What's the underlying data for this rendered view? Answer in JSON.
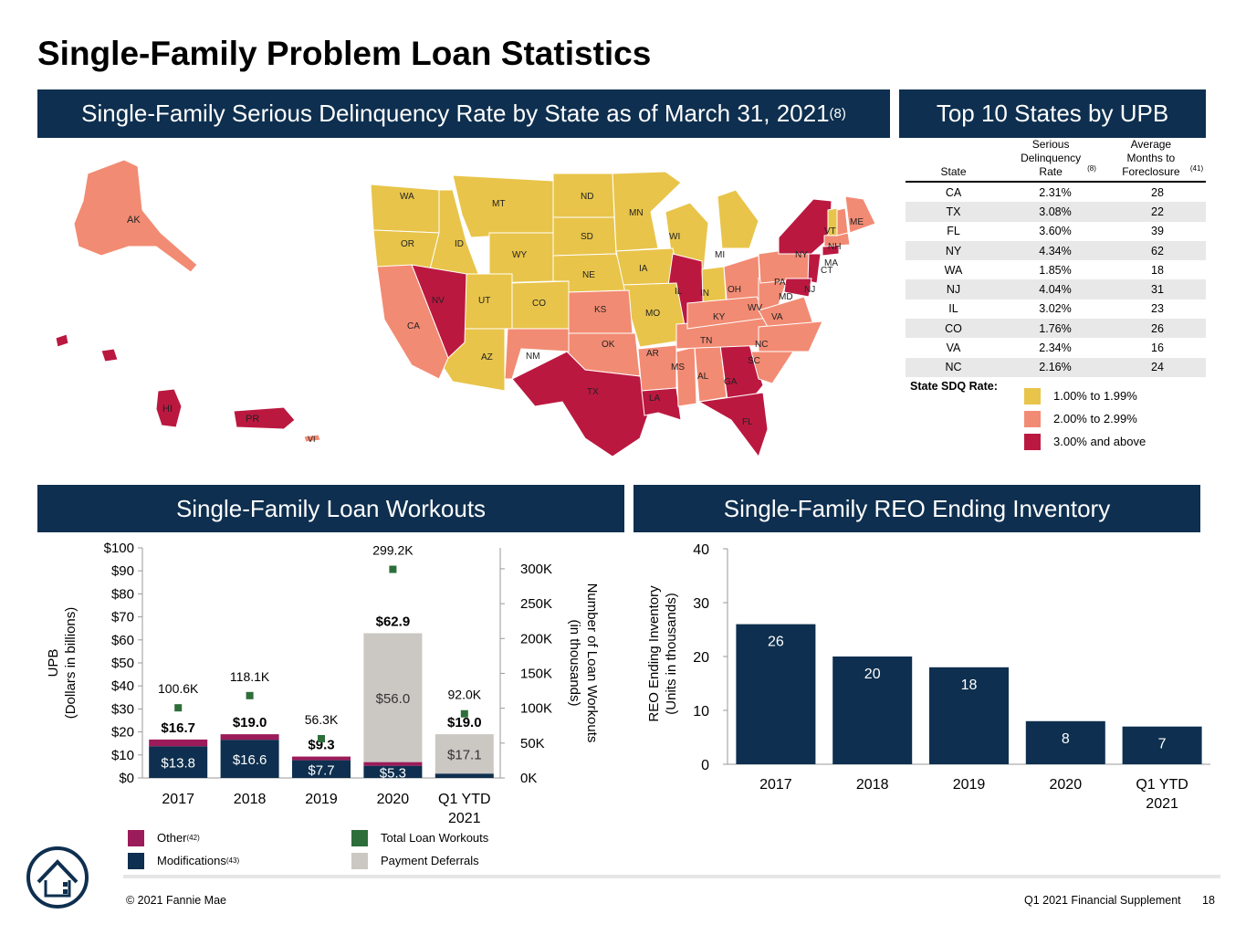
{
  "page": {
    "title": "Single-Family Problem Loan Statistics",
    "footer_left": "© 2021 Fannie Mae",
    "footer_right": "Q1 2021 Financial Supplement",
    "page_number": "18"
  },
  "colors": {
    "navy": "#0e2f4f",
    "tier_low": "#e8c44a",
    "tier_mid": "#f28b73",
    "tier_high": "#bb1840",
    "other": "#9c1b5a",
    "modifications": "#0e2f4f",
    "total_workouts": "#2d6e3a",
    "payment_deferrals": "#cbc8c4"
  },
  "map": {
    "banner": "Single-Family Serious Delinquency Rate by State as of March 31, 2021",
    "banner_sup": "(8)",
    "legend_title": "State SDQ Rate:",
    "legend": [
      {
        "label": "1.00% to 1.99%",
        "color": "#e8c44a"
      },
      {
        "label": "2.00% to 2.99%",
        "color": "#f28b73"
      },
      {
        "label": "3.00% and above",
        "color": "#bb1840"
      }
    ],
    "states_low": [
      "WA",
      "OR",
      "ID",
      "MT",
      "WY",
      "ND",
      "SD",
      "NE",
      "MN",
      "WI",
      "IA",
      "MO",
      "IN",
      "MI",
      "UT",
      "AZ",
      "CO",
      "VT"
    ],
    "states_mid": [
      "AK",
      "CA",
      "NM",
      "KS",
      "OK",
      "AR",
      "TN",
      "KY",
      "OH",
      "WV",
      "VA",
      "NC",
      "SC",
      "AL",
      "MS",
      "PA",
      "ME",
      "NH",
      "MA",
      "VI"
    ],
    "states_high": [
      "NV",
      "TX",
      "LA",
      "IL",
      "GA",
      "FL",
      "NY",
      "NJ",
      "CT",
      "MD",
      "HI",
      "PR"
    ]
  },
  "top10": {
    "banner": "Top 10 States by UPB",
    "headers": {
      "state": "State",
      "sdq": "Serious Delinquency Rate",
      "sdq_sup": "(8)",
      "months": "Average Months to Foreclosure",
      "months_sup": "(41)"
    },
    "rows": [
      {
        "state": "CA",
        "rate": "2.31%",
        "months": "28"
      },
      {
        "state": "TX",
        "rate": "3.08%",
        "months": "22"
      },
      {
        "state": "FL",
        "rate": "3.60%",
        "months": "39"
      },
      {
        "state": "NY",
        "rate": "4.34%",
        "months": "62"
      },
      {
        "state": "WA",
        "rate": "1.85%",
        "months": "18"
      },
      {
        "state": "NJ",
        "rate": "4.04%",
        "months": "31"
      },
      {
        "state": "IL",
        "rate": "3.02%",
        "months": "23"
      },
      {
        "state": "CO",
        "rate": "1.76%",
        "months": "26"
      },
      {
        "state": "VA",
        "rate": "2.34%",
        "months": "16"
      },
      {
        "state": "NC",
        "rate": "2.16%",
        "months": "24"
      }
    ]
  },
  "workouts_banner": "Single-Family Loan Workouts",
  "reo_banner": "Single-Family REO Ending Inventory",
  "chart_data": [
    {
      "type": "bar",
      "title": "Single-Family Loan Workouts",
      "categories": [
        "2017",
        "2018",
        "2019",
        "2020",
        "Q1 YTD 2021"
      ],
      "category_lines": [
        [
          "2017"
        ],
        [
          "2018"
        ],
        [
          "2019"
        ],
        [
          "2020"
        ],
        [
          "Q1 YTD",
          "2021"
        ]
      ],
      "ylabel": "UPB",
      "ylabel2": "(Dollars in billions)",
      "y2label": "Number of Loan Workouts",
      "y2label2": "(in thousands)",
      "ylim": [
        0,
        100
      ],
      "y2lim": [
        0,
        330
      ],
      "yticks": [
        "$0",
        "$10",
        "$20",
        "$30",
        "$40",
        "$50",
        "$60",
        "$70",
        "$80",
        "$90",
        "$100"
      ],
      "y2ticks": [
        "0K",
        "50K",
        "100K",
        "150K",
        "200K",
        "250K",
        "300K"
      ],
      "series": [
        {
          "name": "Modifications",
          "superscript": "(43)",
          "values": [
            13.8,
            16.6,
            7.7,
            5.3,
            1.9
          ],
          "labels": [
            "$13.8",
            "$16.6",
            "$7.7",
            "$5.3",
            ""
          ]
        },
        {
          "name": "Other",
          "superscript": "(42)",
          "values": [
            2.9,
            2.4,
            1.6,
            1.6,
            0
          ]
        },
        {
          "name": "Payment Deferrals",
          "values": [
            0,
            0,
            0,
            56.0,
            17.1
          ],
          "labels": [
            "",
            "",
            "",
            "$56.0",
            "$17.1"
          ]
        },
        {
          "name": "Total Loan Workouts",
          "axis": "secondary",
          "values": [
            100.6,
            118.1,
            56.3,
            299.2,
            92.0
          ],
          "labels": [
            "100.6K",
            "118.1K",
            "56.3K",
            "299.2K",
            "92.0K"
          ]
        }
      ],
      "totals": [
        "$16.7",
        "$19.0",
        "$9.3",
        "$62.9",
        "$19.0"
      ],
      "total_values": [
        16.7,
        19.0,
        9.3,
        62.9,
        19.0
      ]
    },
    {
      "type": "bar",
      "title": "Single-Family REO Ending Inventory",
      "categories": [
        "2017",
        "2018",
        "2019",
        "2020",
        "Q1 YTD 2021"
      ],
      "category_lines": [
        [
          "2017"
        ],
        [
          "2018"
        ],
        [
          "2019"
        ],
        [
          "2020"
        ],
        [
          "Q1 YTD",
          "2021"
        ]
      ],
      "ylabel": "REO Ending Inventory",
      "ylabel2": "(Units in thousands)",
      "ylim": [
        0,
        40
      ],
      "yticks": [
        "0",
        "10",
        "20",
        "30",
        "40"
      ],
      "values": [
        26,
        20,
        18,
        8,
        7
      ],
      "labels": [
        "26",
        "20",
        "18",
        "8",
        "7"
      ]
    }
  ]
}
